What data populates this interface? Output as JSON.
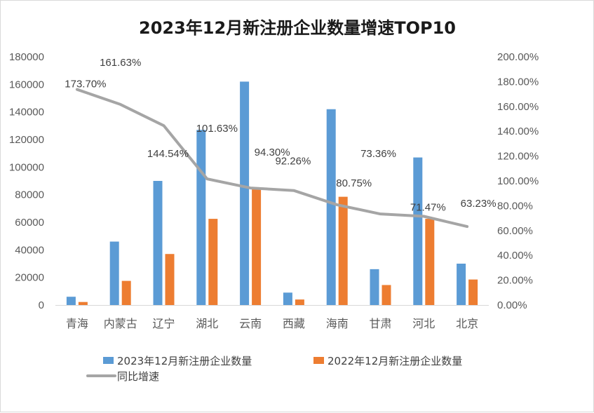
{
  "chart_data": {
    "type": "bar",
    "title": "2023年12月新注册企业数量增速TOP10",
    "categories": [
      "青海",
      "内蒙古",
      "辽宁",
      "湖北",
      "云南",
      "西藏",
      "海南",
      "甘肃",
      "河北",
      "北京"
    ],
    "series": [
      {
        "name": "2023年12月新注册企业数量",
        "kind": "bar",
        "axis": "left",
        "color": "#5b9bd5",
        "values": [
          6000,
          46000,
          90000,
          127000,
          162000,
          9000,
          142000,
          26000,
          107000,
          30000
        ]
      },
      {
        "name": "2022年12月新注册企业数量",
        "kind": "bar",
        "axis": "left",
        "color": "#ed7d31",
        "values": [
          2200,
          17500,
          37000,
          62500,
          84000,
          4000,
          78500,
          14500,
          62500,
          18500
        ]
      },
      {
        "name": "同比增速",
        "kind": "line",
        "axis": "right",
        "color": "#a5a5a5",
        "values": [
          173.7,
          161.63,
          144.54,
          101.63,
          94.3,
          92.26,
          80.75,
          73.36,
          71.47,
          63.23
        ],
        "labels": [
          "173.70%",
          "161.63%",
          "144.54%",
          "101.63%",
          "94.30%",
          "92.26%",
          "80.75%",
          "73.36%",
          "71.47%",
          "63.23%"
        ]
      }
    ],
    "y_left": {
      "min": 0,
      "max": 180000,
      "step": 20000,
      "ticks": [
        "0",
        "20000",
        "40000",
        "60000",
        "80000",
        "100000",
        "120000",
        "140000",
        "160000",
        "180000"
      ]
    },
    "y_right": {
      "min": 0,
      "max": 200,
      "step": 20,
      "ticks": [
        "0.00%",
        "20.00%",
        "40.00%",
        "60.00%",
        "80.00%",
        "100.00%",
        "120.00%",
        "140.00%",
        "160.00%",
        "180.00%",
        "200.00%"
      ]
    },
    "grid": false,
    "legend_position": "bottom"
  }
}
